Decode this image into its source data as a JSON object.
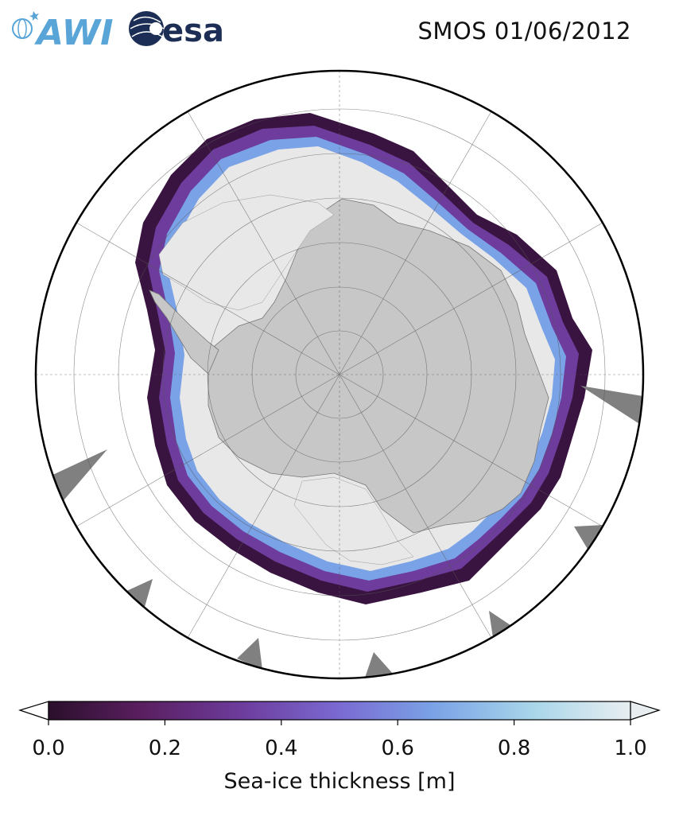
{
  "header": {
    "title": "SMOS 01/06/2012",
    "logos": [
      {
        "name": "awi-logo",
        "text": "AWI",
        "color": "#5aa5d8"
      },
      {
        "name": "esa-logo",
        "text": "esa",
        "color": "#1c2e55"
      }
    ]
  },
  "map": {
    "projection": "south-polar-stereographic",
    "graticule": true,
    "colors": {
      "land": "#c7c7c7",
      "ice_shelf": "#e8e8e8",
      "no_data": "#808080",
      "ocean": "#ffffff",
      "coastline": "#555555"
    }
  },
  "colorbar": {
    "label": "Sea-ice thickness [m]",
    "min": 0.0,
    "max": 1.0,
    "extend": "both",
    "ticks": [
      {
        "value": 0.0,
        "label": "0.0"
      },
      {
        "value": 0.2,
        "label": "0.2"
      },
      {
        "value": 0.4,
        "label": "0.4"
      },
      {
        "value": 0.6,
        "label": "0.6"
      },
      {
        "value": 0.8,
        "label": "0.8"
      },
      {
        "value": 1.0,
        "label": "1.0"
      }
    ],
    "stops": [
      "#2b0f2c",
      "#5a1f60",
      "#6d3c9c",
      "#7a6ad2",
      "#7aa2e6",
      "#a8d5ea",
      "#e8eef0"
    ]
  }
}
